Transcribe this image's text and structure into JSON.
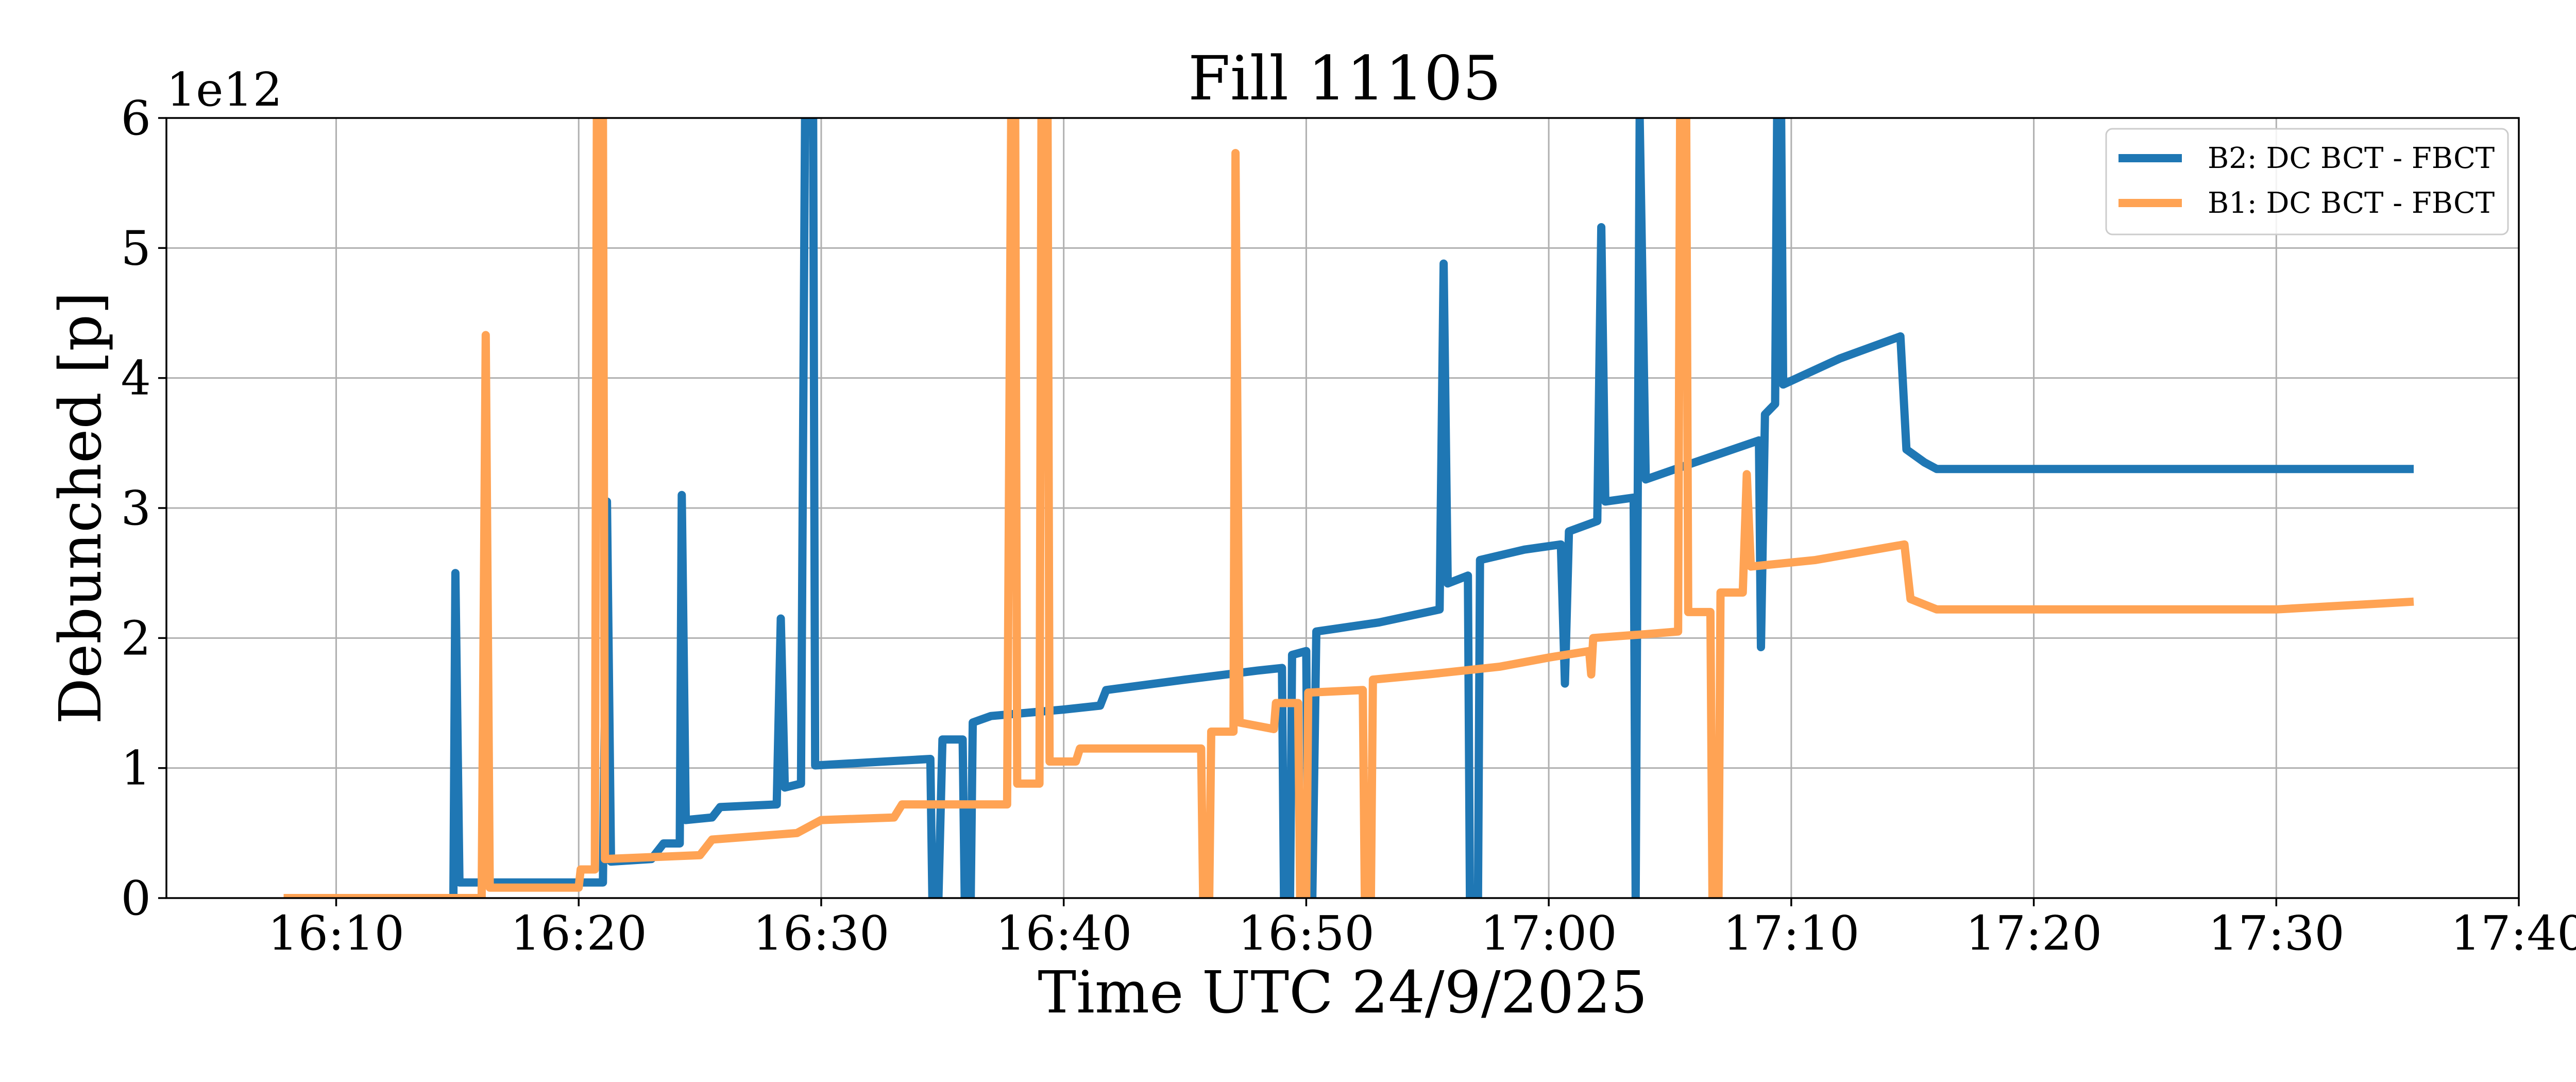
{
  "chart_data": {
    "type": "line",
    "title": "Fill 11105",
    "xlabel": "Time UTC 24/9/2025",
    "ylabel": "Debunched [p]",
    "y_offset_label": "1e12",
    "xlim": [
      "16:03:00",
      "17:40:00"
    ],
    "ylim": [
      0,
      6
    ],
    "x_ticks": [
      "16:10",
      "16:20",
      "16:30",
      "16:40",
      "16:50",
      "17:00",
      "17:10",
      "17:20",
      "17:30",
      "17:40"
    ],
    "y_ticks": [
      "0",
      "1",
      "2",
      "3",
      "4",
      "5",
      "6"
    ],
    "grid": true,
    "legend_position": "top-right",
    "colors": {
      "B2": "#1f77b4",
      "B1": "#ffa354"
    },
    "series": [
      {
        "name": "B2: DC BCT - FBCT",
        "points": [
          [
            "16:07:50",
            0.0
          ],
          [
            "16:14:50",
            0.0
          ],
          [
            "16:14:55",
            2.5
          ],
          [
            "16:15:05",
            0.12
          ],
          [
            "16:21:00",
            0.12
          ],
          [
            "16:21:10",
            3.05
          ],
          [
            "16:21:20",
            0.28
          ],
          [
            "16:23:00",
            0.3
          ],
          [
            "16:23:30",
            0.42
          ],
          [
            "16:24:10",
            0.42
          ],
          [
            "16:24:15",
            3.1
          ],
          [
            "16:24:25",
            0.6
          ],
          [
            "16:25:30",
            0.62
          ],
          [
            "16:25:50",
            0.7
          ],
          [
            "16:28:10",
            0.72
          ],
          [
            "16:28:20",
            2.15
          ],
          [
            "16:28:30",
            0.85
          ],
          [
            "16:29:10",
            0.88
          ],
          [
            "16:29:20",
            6.0
          ],
          [
            "16:29:40",
            6.0
          ],
          [
            "16:29:45",
            1.02
          ],
          [
            "16:34:30",
            1.07
          ],
          [
            "16:34:35",
            0.0
          ],
          [
            "16:34:50",
            0.0
          ],
          [
            "16:35:00",
            1.22
          ],
          [
            "16:35:50",
            1.22
          ],
          [
            "16:35:55",
            0.0
          ],
          [
            "16:36:10",
            0.0
          ],
          [
            "16:36:15",
            1.35
          ],
          [
            "16:37:00",
            1.4
          ],
          [
            "16:40:00",
            1.45
          ],
          [
            "16:41:30",
            1.48
          ],
          [
            "16:41:45",
            1.6
          ],
          [
            "16:45:00",
            1.68
          ],
          [
            "16:48:00",
            1.75
          ],
          [
            "16:49:00",
            1.77
          ],
          [
            "16:49:05",
            0.0
          ],
          [
            "16:49:20",
            0.0
          ],
          [
            "16:49:25",
            1.87
          ],
          [
            "16:50:00",
            1.9
          ],
          [
            "16:50:05",
            0.0
          ],
          [
            "16:50:15",
            0.0
          ],
          [
            "16:50:25",
            2.05
          ],
          [
            "16:53:00",
            2.12
          ],
          [
            "16:55:30",
            2.22
          ],
          [
            "16:55:40",
            4.88
          ],
          [
            "16:55:50",
            2.42
          ],
          [
            "16:56:40",
            2.48
          ],
          [
            "16:56:45",
            0.0
          ],
          [
            "16:57:05",
            0.0
          ],
          [
            "16:57:10",
            2.6
          ],
          [
            "16:59:00",
            2.68
          ],
          [
            "17:00:30",
            2.72
          ],
          [
            "17:00:40",
            1.65
          ],
          [
            "17:00:50",
            2.82
          ],
          [
            "17:02:00",
            2.9
          ],
          [
            "17:02:10",
            5.16
          ],
          [
            "17:02:20",
            3.05
          ],
          [
            "17:03:30",
            3.08
          ],
          [
            "17:03:35",
            0.0
          ],
          [
            "17:03:45",
            6.0
          ],
          [
            "17:04:00",
            3.22
          ],
          [
            "17:06:00",
            3.35
          ],
          [
            "17:08:40",
            3.52
          ],
          [
            "17:08:45",
            1.93
          ],
          [
            "17:08:55",
            3.72
          ],
          [
            "17:09:20",
            3.8
          ],
          [
            "17:09:25",
            6.0
          ],
          [
            "17:09:35",
            6.0
          ],
          [
            "17:09:40",
            3.95
          ],
          [
            "17:12:00",
            4.15
          ],
          [
            "17:14:30",
            4.32
          ],
          [
            "17:14:45",
            3.45
          ],
          [
            "17:15:30",
            3.35
          ],
          [
            "17:16:00",
            3.3
          ],
          [
            "17:20:00",
            3.3
          ],
          [
            "17:25:00",
            3.3
          ],
          [
            "17:30:00",
            3.3
          ],
          [
            "17:35:40",
            3.3
          ]
        ]
      },
      {
        "name": "B1: DC BCT - FBCT",
        "points": [
          [
            "16:07:50",
            0.0
          ],
          [
            "16:16:00",
            0.0
          ],
          [
            "16:16:10",
            4.33
          ],
          [
            "16:16:20",
            0.08
          ],
          [
            "16:20:00",
            0.08
          ],
          [
            "16:20:05",
            0.22
          ],
          [
            "16:20:40",
            0.22
          ],
          [
            "16:20:45",
            6.0
          ],
          [
            "16:21:00",
            6.0
          ],
          [
            "16:21:05",
            0.3
          ],
          [
            "16:25:00",
            0.33
          ],
          [
            "16:25:30",
            0.45
          ],
          [
            "16:29:00",
            0.5
          ],
          [
            "16:30:00",
            0.6
          ],
          [
            "16:33:00",
            0.62
          ],
          [
            "16:33:20",
            0.72
          ],
          [
            "16:37:40",
            0.72
          ],
          [
            "16:37:50",
            6.0
          ],
          [
            "16:38:00",
            6.0
          ],
          [
            "16:38:05",
            0.88
          ],
          [
            "16:39:00",
            0.88
          ],
          [
            "16:39:05",
            6.0
          ],
          [
            "16:39:20",
            6.0
          ],
          [
            "16:39:25",
            1.05
          ],
          [
            "16:40:30",
            1.05
          ],
          [
            "16:40:40",
            1.15
          ],
          [
            "16:45:40",
            1.15
          ],
          [
            "16:45:45",
            0.0
          ],
          [
            "16:46:00",
            0.0
          ],
          [
            "16:46:05",
            1.28
          ],
          [
            "16:47:00",
            1.28
          ],
          [
            "16:47:05",
            5.73
          ],
          [
            "16:47:15",
            1.35
          ],
          [
            "16:48:40",
            1.3
          ],
          [
            "16:48:45",
            1.5
          ],
          [
            "16:49:40",
            1.5
          ],
          [
            "16:49:45",
            0.0
          ],
          [
            "16:50:00",
            0.0
          ],
          [
            "16:50:05",
            1.58
          ],
          [
            "16:52:20",
            1.6
          ],
          [
            "16:52:25",
            0.0
          ],
          [
            "16:52:40",
            0.0
          ],
          [
            "16:52:45",
            1.68
          ],
          [
            "16:55:00",
            1.72
          ],
          [
            "16:58:00",
            1.78
          ],
          [
            "17:00:00",
            1.85
          ],
          [
            "17:01:40",
            1.9
          ],
          [
            "17:01:45",
            1.72
          ],
          [
            "17:01:50",
            2.0
          ],
          [
            "17:04:00",
            2.03
          ],
          [
            "17:05:20",
            2.05
          ],
          [
            "17:05:25",
            6.0
          ],
          [
            "17:05:40",
            6.0
          ],
          [
            "17:05:45",
            2.2
          ],
          [
            "17:06:40",
            2.2
          ],
          [
            "17:06:45",
            0.0
          ],
          [
            "17:07:00",
            0.0
          ],
          [
            "17:07:05",
            2.35
          ],
          [
            "17:08:00",
            2.35
          ],
          [
            "17:08:10",
            3.26
          ],
          [
            "17:08:20",
            2.55
          ],
          [
            "17:11:00",
            2.6
          ],
          [
            "17:14:40",
            2.72
          ],
          [
            "17:14:55",
            2.3
          ],
          [
            "17:16:00",
            2.22
          ],
          [
            "17:20:00",
            2.22
          ],
          [
            "17:25:00",
            2.22
          ],
          [
            "17:30:00",
            2.22
          ],
          [
            "17:35:40",
            2.28
          ]
        ]
      }
    ]
  }
}
